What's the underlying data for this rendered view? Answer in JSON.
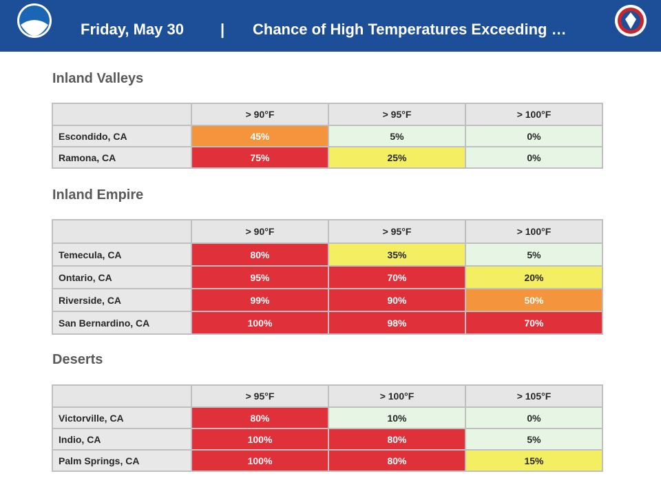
{
  "header": {
    "date": "Friday, May 30",
    "separator": "|",
    "title": "Chance of High Temperatures Exceeding …"
  },
  "sections": [
    {
      "title": "Inland Valleys",
      "table": {
        "columns": [
          "> 90°F",
          "> 95°F",
          "> 100°F"
        ],
        "rows": [
          {
            "location": "Escondido, CA",
            "cells": [
              {
                "text": "45%",
                "fill": "#f4943c",
                "ink": "#ffffff"
              },
              {
                "text": "5%",
                "fill": "#e6f5e4",
                "ink": "#262626"
              },
              {
                "text": "0%",
                "fill": "#e6f5e4",
                "ink": "#262626"
              }
            ]
          },
          {
            "location": "Ramona, CA",
            "cells": [
              {
                "text": "75%",
                "fill": "#e0303a",
                "ink": "#ffffff"
              },
              {
                "text": "25%",
                "fill": "#f4ee62",
                "ink": "#262626"
              },
              {
                "text": "0%",
                "fill": "#e6f5e4",
                "ink": "#262626"
              }
            ]
          }
        ]
      }
    },
    {
      "title": "Inland Empire",
      "table": {
        "columns": [
          "> 90°F",
          "> 95°F",
          "> 100°F"
        ],
        "rows": [
          {
            "location": "Temecula, CA",
            "cells": [
              {
                "text": "80%",
                "fill": "#e0303a",
                "ink": "#ffffff"
              },
              {
                "text": "35%",
                "fill": "#f4ee62",
                "ink": "#262626"
              },
              {
                "text": "5%",
                "fill": "#e6f5e4",
                "ink": "#262626"
              }
            ]
          },
          {
            "location": "Ontario, CA",
            "cells": [
              {
                "text": "95%",
                "fill": "#e0303a",
                "ink": "#ffffff"
              },
              {
                "text": "70%",
                "fill": "#e0303a",
                "ink": "#ffffff"
              },
              {
                "text": "20%",
                "fill": "#f4ee62",
                "ink": "#262626"
              }
            ]
          },
          {
            "location": "Riverside, CA",
            "cells": [
              {
                "text": "99%",
                "fill": "#e0303a",
                "ink": "#ffffff"
              },
              {
                "text": "90%",
                "fill": "#e0303a",
                "ink": "#ffffff"
              },
              {
                "text": "50%",
                "fill": "#f4943c",
                "ink": "#ffffff"
              }
            ]
          },
          {
            "location": "San Bernardino, CA",
            "cells": [
              {
                "text": "100%",
                "fill": "#e0303a",
                "ink": "#ffffff"
              },
              {
                "text": "98%",
                "fill": "#e0303a",
                "ink": "#ffffff"
              },
              {
                "text": "70%",
                "fill": "#e0303a",
                "ink": "#ffffff"
              }
            ]
          }
        ]
      }
    },
    {
      "title": "Deserts",
      "table": {
        "columns": [
          "> 95°F",
          "> 100°F",
          "> 105°F"
        ],
        "rows": [
          {
            "location": "Victorville, CA",
            "cells": [
              {
                "text": "80%",
                "fill": "#e0303a",
                "ink": "#ffffff"
              },
              {
                "text": "10%",
                "fill": "#e6f5e4",
                "ink": "#262626"
              },
              {
                "text": "0%",
                "fill": "#e6f5e4",
                "ink": "#262626"
              }
            ]
          },
          {
            "location": "Indio, CA",
            "cells": [
              {
                "text": "100%",
                "fill": "#e0303a",
                "ink": "#ffffff"
              },
              {
                "text": "80%",
                "fill": "#e0303a",
                "ink": "#ffffff"
              },
              {
                "text": "5%",
                "fill": "#e6f5e4",
                "ink": "#262626"
              }
            ]
          },
          {
            "location": "Palm Springs, CA",
            "cells": [
              {
                "text": "100%",
                "fill": "#e0303a",
                "ink": "#ffffff"
              },
              {
                "text": "80%",
                "fill": "#e0303a",
                "ink": "#ffffff"
              },
              {
                "text": "15%",
                "fill": "#f4ee62",
                "ink": "#262626"
              }
            ]
          }
        ]
      }
    }
  ]
}
